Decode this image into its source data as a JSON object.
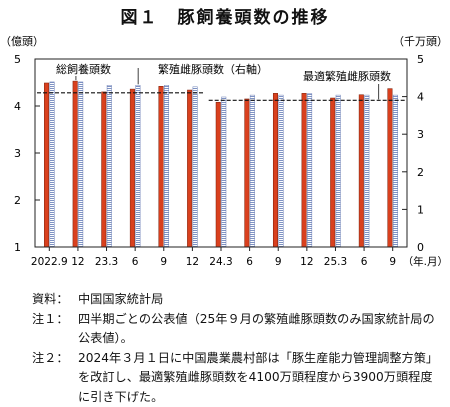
{
  "title": "図１　豚飼養頭数の推移",
  "chart_data": {
    "type": "bar",
    "title": "図１　豚飼養頭数の推移",
    "categories": [
      "2022.9",
      "12",
      "23.3",
      "6",
      "9",
      "12",
      "24.3",
      "6",
      "9",
      "12",
      "25.3",
      "6",
      "9"
    ],
    "x_unit": "（年.月）",
    "y_left": {
      "label": "（億頭）",
      "range": [
        1,
        5
      ],
      "ticks": [
        1,
        2,
        3,
        4,
        5
      ]
    },
    "y_right": {
      "label": "（千万頭）",
      "range": [
        0,
        5
      ],
      "ticks": [
        0,
        1,
        2,
        3,
        4,
        5
      ]
    },
    "series": [
      {
        "name": "総飼養頭数",
        "axis": "left",
        "color": "#d9401e",
        "values": [
          4.49,
          4.53,
          4.3,
          4.36,
          4.42,
          4.34,
          4.08,
          4.15,
          4.27,
          4.27,
          4.17,
          4.24,
          4.37
        ]
      },
      {
        "name": "繁殖雌豚頭数（右軸）",
        "axis": "right",
        "color": "#8fa0c8",
        "values": [
          4.39,
          4.39,
          4.3,
          4.3,
          4.3,
          4.26,
          3.99,
          4.04,
          4.04,
          4.08,
          4.04,
          4.04,
          4.04
        ]
      }
    ],
    "reference_lines": [
      {
        "name": "最適繁殖雌豚頭数",
        "axis": "right",
        "segments": [
          {
            "from": 0,
            "to": 5,
            "value": 4.1
          },
          {
            "from": 6,
            "to": 12,
            "value": 3.9
          }
        ]
      }
    ]
  },
  "notes": [
    {
      "key": "資料：",
      "text": "中国国家統計局"
    },
    {
      "key": "注１：",
      "text": "四半期ごとの公表値（25年９月の繁殖雌豚頭数のみ国家統計局の公表値）。"
    },
    {
      "key": "注２：",
      "text": "2024年３月１日に中国農業農村部は「豚生産能力管理調整方策」を改訂し、最適繁殖雌豚頭数を4100万頭程度から3900万頭程度に引き下げた。"
    }
  ]
}
